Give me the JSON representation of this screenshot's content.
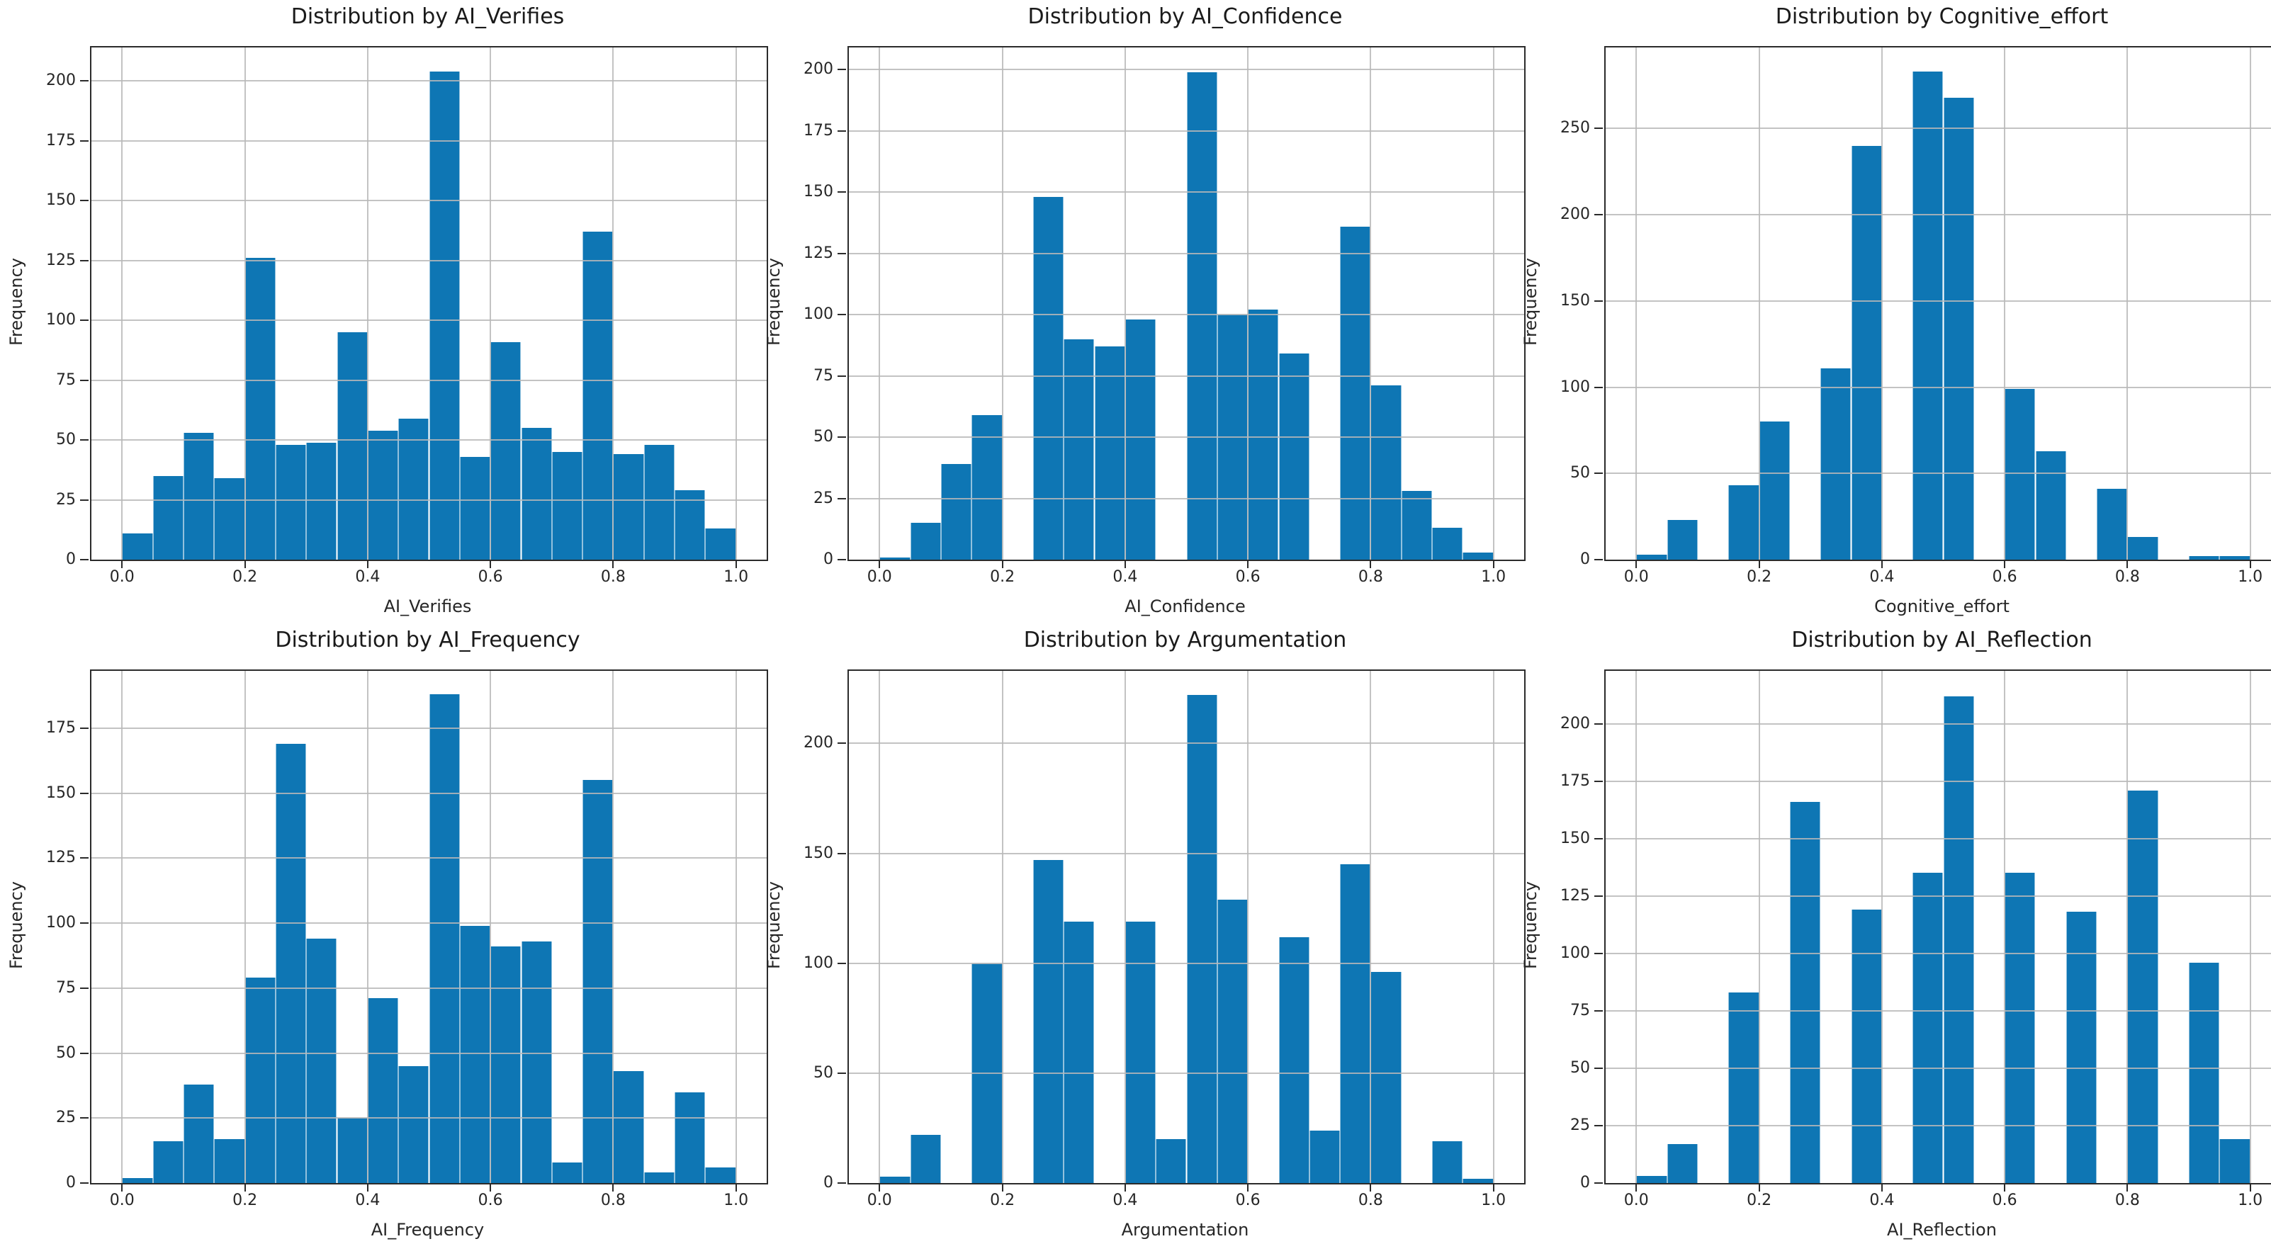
{
  "figure": {
    "rows": 2,
    "cols": 3,
    "background_color": "#ffffff",
    "bar_color": "#0e76b4",
    "grid_color": "#b9b9b9",
    "spine_color": "#2b2b2b"
  },
  "chart_data": [
    {
      "type": "bar",
      "title": "Distribution by AI_Verifies",
      "xlabel": "AI_Verifies",
      "ylabel": "Frequency",
      "bin_start": 0.0,
      "bin_width": 0.05,
      "values": [
        11,
        35,
        53,
        34,
        126,
        48,
        49,
        95,
        54,
        59,
        204,
        43,
        91,
        55,
        45,
        137,
        44,
        48,
        29,
        13
      ],
      "xticks": [
        0.0,
        0.2,
        0.4,
        0.6,
        0.8,
        1.0
      ],
      "yticks": [
        0,
        25,
        50,
        75,
        100,
        125,
        150,
        175,
        200
      ],
      "xlim": [
        -0.05,
        1.05
      ],
      "ylim": [
        0,
        214
      ],
      "grid": true
    },
    {
      "type": "bar",
      "title": "Distribution by AI_Confidence",
      "xlabel": "AI_Confidence",
      "ylabel": "Frequency",
      "bin_start": 0.0,
      "bin_width": 0.05,
      "values": [
        1,
        15,
        39,
        59,
        0,
        148,
        90,
        87,
        98,
        0,
        199,
        100,
        102,
        84,
        0,
        136,
        71,
        28,
        13,
        3
      ],
      "xticks": [
        0.0,
        0.2,
        0.4,
        0.6,
        0.8,
        1.0
      ],
      "yticks": [
        0,
        25,
        50,
        75,
        100,
        125,
        150,
        175,
        200
      ],
      "xlim": [
        -0.05,
        1.05
      ],
      "ylim": [
        0,
        209
      ],
      "grid": true
    },
    {
      "type": "bar",
      "title": "Distribution by Cognitive_effort",
      "xlabel": "Cognitive_effort",
      "ylabel": "Frequency",
      "bin_start": 0.0,
      "bin_width": 0.05,
      "values": [
        3,
        23,
        0,
        43,
        80,
        0,
        111,
        240,
        0,
        283,
        268,
        0,
        99,
        63,
        0,
        41,
        13,
        0,
        2,
        2
      ],
      "xticks": [
        0.0,
        0.2,
        0.4,
        0.6,
        0.8,
        1.0
      ],
      "yticks": [
        0,
        50,
        100,
        150,
        200,
        250
      ],
      "xlim": [
        -0.05,
        1.05
      ],
      "ylim": [
        0,
        297
      ],
      "grid": true
    },
    {
      "type": "bar",
      "title": "Distribution by AI_Frequency",
      "xlabel": "AI_Frequency",
      "ylabel": "Frequency",
      "bin_start": 0.0,
      "bin_width": 0.05,
      "values": [
        2,
        16,
        38,
        17,
        79,
        169,
        94,
        25,
        71,
        45,
        188,
        99,
        91,
        93,
        8,
        155,
        43,
        4,
        35,
        6
      ],
      "xticks": [
        0.0,
        0.2,
        0.4,
        0.6,
        0.8,
        1.0
      ],
      "yticks": [
        0,
        25,
        50,
        75,
        100,
        125,
        150,
        175
      ],
      "xlim": [
        -0.05,
        1.05
      ],
      "ylim": [
        0,
        197
      ],
      "grid": true
    },
    {
      "type": "bar",
      "title": "Distribution by Argumentation",
      "xlabel": "Argumentation",
      "ylabel": "Frequency",
      "bin_start": 0.0,
      "bin_width": 0.05,
      "values": [
        3,
        22,
        0,
        100,
        0,
        147,
        119,
        0,
        119,
        20,
        222,
        129,
        0,
        112,
        24,
        145,
        96,
        0,
        19,
        2
      ],
      "xticks": [
        0.0,
        0.2,
        0.4,
        0.6,
        0.8,
        1.0
      ],
      "yticks": [
        0,
        50,
        100,
        150,
        200
      ],
      "xlim": [
        -0.05,
        1.05
      ],
      "ylim": [
        0,
        233
      ],
      "grid": true
    },
    {
      "type": "bar",
      "title": "Distribution by AI_Reflection",
      "xlabel": "AI_Reflection",
      "ylabel": "Frequency",
      "bin_start": 0.0,
      "bin_width": 0.05,
      "values": [
        3,
        17,
        0,
        83,
        0,
        166,
        0,
        119,
        0,
        135,
        212,
        0,
        135,
        0,
        118,
        0,
        171,
        0,
        96,
        19
      ],
      "xticks": [
        0.0,
        0.2,
        0.4,
        0.6,
        0.8,
        1.0
      ],
      "yticks": [
        0,
        25,
        50,
        75,
        100,
        125,
        150,
        175,
        200
      ],
      "xlim": [
        -0.05,
        1.05
      ],
      "ylim": [
        0,
        223
      ],
      "grid": true
    }
  ]
}
